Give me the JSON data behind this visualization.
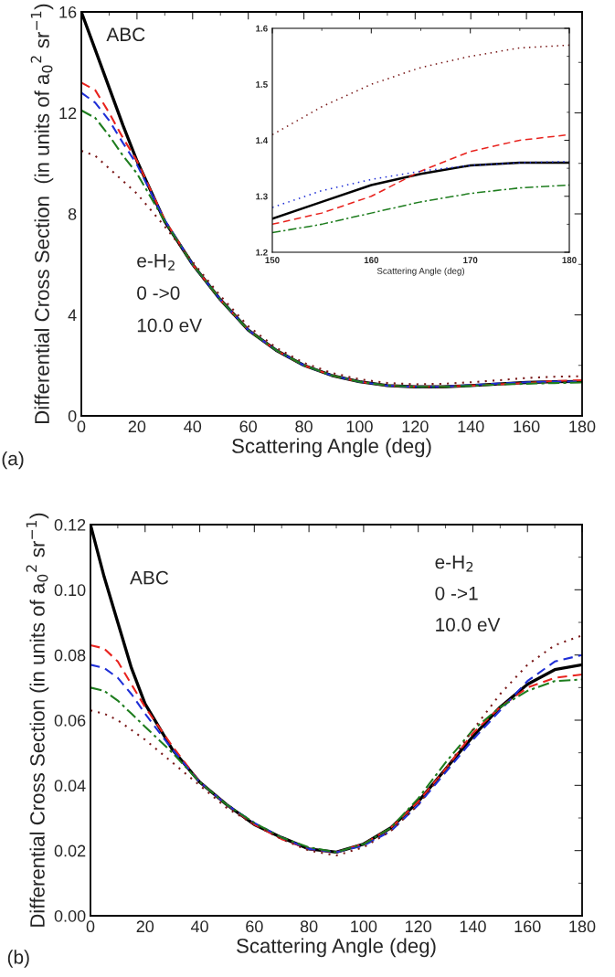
{
  "chart_data": [
    {
      "type": "line",
      "xlabel": "Scattering Angle (deg)",
      "ylabel": "Differential Cross Section  (in units of a$_{0}$$^{2}$ sr$^{−1}$)",
      "annotations": [
        "ABC",
        "e-H$_{2}$",
        "0 ->0",
        "10.0 eV",
        "(a)"
      ],
      "xlim": [
        0,
        180
      ],
      "ylim": [
        0,
        16
      ],
      "xticks": [
        0,
        20,
        40,
        60,
        80,
        100,
        120,
        140,
        160,
        180
      ],
      "yticks": [
        0,
        4,
        8,
        12,
        16
      ],
      "grid": false,
      "x": [
        0,
        5,
        10,
        15,
        20,
        30,
        40,
        50,
        60,
        70,
        80,
        90,
        100,
        110,
        120,
        130,
        140,
        150,
        160,
        170,
        180
      ],
      "series": [
        {
          "color": "#000000",
          "line_style": "solid",
          "values": [
            16,
            14.5,
            13.0,
            11.5,
            10.1,
            7.7,
            6.0,
            4.6,
            3.4,
            2.6,
            2.0,
            1.6,
            1.35,
            1.2,
            1.15,
            1.15,
            1.2,
            1.26,
            1.32,
            1.35,
            1.36
          ]
        },
        {
          "color": "#e8231e",
          "line_style": "dashed",
          "values": [
            13.2,
            12.9,
            12.0,
            11.0,
            10.1,
            7.75,
            6.0,
            4.6,
            3.4,
            2.6,
            2.0,
            1.6,
            1.35,
            1.2,
            1.15,
            1.15,
            1.2,
            1.25,
            1.3,
            1.38,
            1.41
          ]
        },
        {
          "color": "#1f2fd6",
          "line_style": "dashed",
          "values": [
            12.8,
            12.4,
            11.7,
            10.8,
            9.95,
            7.75,
            6.0,
            4.6,
            3.4,
            2.6,
            2.0,
            1.6,
            1.35,
            1.2,
            1.15,
            1.15,
            1.22,
            1.28,
            1.33,
            1.36,
            1.36
          ]
        },
        {
          "color": "#1e7d1e",
          "line_style": "dashdot",
          "values": [
            12.1,
            11.8,
            11.1,
            10.3,
            9.6,
            7.7,
            6.0,
            4.6,
            3.4,
            2.6,
            2.0,
            1.6,
            1.35,
            1.2,
            1.15,
            1.15,
            1.19,
            1.24,
            1.27,
            1.3,
            1.32
          ]
        },
        {
          "color": "#7a1a1a",
          "line_style": "dotted",
          "values": [
            10.5,
            10.3,
            9.8,
            9.3,
            8.8,
            7.5,
            6.1,
            4.75,
            3.55,
            2.7,
            2.1,
            1.7,
            1.45,
            1.3,
            1.25,
            1.27,
            1.33,
            1.41,
            1.5,
            1.55,
            1.57
          ]
        }
      ]
    },
    {
      "type": "line",
      "xlabel": "Scattering Angle (deg)",
      "xlim": [
        150,
        180
      ],
      "ylim": [
        1.2,
        1.6
      ],
      "xticks": [
        150,
        160,
        170,
        180
      ],
      "yticks": [
        1.2,
        1.3,
        1.4,
        1.5,
        1.6
      ],
      "grid": false,
      "x": [
        150,
        155,
        160,
        165,
        170,
        175,
        180
      ],
      "series": [
        {
          "color": "#000000",
          "line_style": "solid",
          "values": [
            1.26,
            1.29,
            1.32,
            1.34,
            1.355,
            1.36,
            1.36
          ]
        },
        {
          "color": "#e8231e",
          "line_style": "dashed",
          "values": [
            1.25,
            1.27,
            1.3,
            1.345,
            1.38,
            1.4,
            1.41
          ]
        },
        {
          "color": "#1f2fd6",
          "line_style": "dotted",
          "values": [
            1.28,
            1.31,
            1.33,
            1.345,
            1.355,
            1.36,
            1.362
          ]
        },
        {
          "color": "#1e7d1e",
          "line_style": "dashdot",
          "values": [
            1.235,
            1.25,
            1.27,
            1.29,
            1.305,
            1.315,
            1.32
          ]
        },
        {
          "color": "#7a1a1a",
          "line_style": "dotted",
          "values": [
            1.41,
            1.46,
            1.5,
            1.53,
            1.55,
            1.565,
            1.57
          ]
        }
      ]
    },
    {
      "type": "line",
      "xlabel": "Scattering Angle (deg)",
      "ylabel": "Differential Cross Section (in units of a$_{0}$$^{2}$ sr$^{−1}$)",
      "annotations": [
        "ABC",
        "e-H$_{2}$",
        "0 ->1",
        "10.0 eV",
        "(b)"
      ],
      "xlim": [
        0,
        180
      ],
      "ylim": [
        0,
        0.12
      ],
      "xticks": [
        0,
        20,
        40,
        60,
        80,
        100,
        120,
        140,
        160,
        180
      ],
      "yticks": [
        {
          "value": 0,
          "label": "0.00"
        },
        {
          "value": 0.02,
          "label": "0.02"
        },
        {
          "value": 0.04,
          "label": "0.04"
        },
        {
          "value": 0.06,
          "label": "0.06"
        },
        {
          "value": 0.08,
          "label": "0.08"
        },
        {
          "value": 0.1,
          "label": "0.10"
        },
        {
          "value": 0.12,
          "label": "0.12"
        }
      ],
      "grid": false,
      "x": [
        0,
        5,
        10,
        15,
        20,
        30,
        40,
        50,
        60,
        70,
        80,
        90,
        100,
        110,
        120,
        130,
        140,
        150,
        160,
        170,
        180
      ],
      "series": [
        {
          "color": "#000000",
          "line_style": "solid",
          "values": [
            0.12,
            0.104,
            0.09,
            0.076,
            0.065,
            0.051,
            0.041,
            0.034,
            0.028,
            0.024,
            0.0205,
            0.0195,
            0.022,
            0.027,
            0.035,
            0.045,
            0.055,
            0.064,
            0.071,
            0.0755,
            0.077
          ]
        },
        {
          "color": "#e8231e",
          "line_style": "dashed",
          "values": [
            0.083,
            0.082,
            0.078,
            0.071,
            0.064,
            0.052,
            0.041,
            0.034,
            0.028,
            0.0235,
            0.0205,
            0.0195,
            0.022,
            0.027,
            0.035,
            0.045,
            0.056,
            0.064,
            0.07,
            0.073,
            0.074
          ]
        },
        {
          "color": "#1f2fd6",
          "line_style": "dashed",
          "values": [
            0.077,
            0.076,
            0.073,
            0.068,
            0.062,
            0.051,
            0.041,
            0.034,
            0.0285,
            0.024,
            0.0205,
            0.0195,
            0.0215,
            0.026,
            0.034,
            0.044,
            0.054,
            0.063,
            0.072,
            0.078,
            0.08
          ]
        },
        {
          "color": "#1e7d1e",
          "line_style": "dashdot",
          "values": [
            0.07,
            0.069,
            0.066,
            0.062,
            0.058,
            0.05,
            0.041,
            0.034,
            0.0285,
            0.024,
            0.021,
            0.0195,
            0.022,
            0.027,
            0.036,
            0.047,
            0.057,
            0.064,
            0.069,
            0.072,
            0.0725
          ]
        },
        {
          "color": "#7a1a1a",
          "line_style": "dotted",
          "values": [
            0.063,
            0.062,
            0.06,
            0.057,
            0.054,
            0.047,
            0.04,
            0.033,
            0.028,
            0.0235,
            0.02,
            0.0185,
            0.021,
            0.026,
            0.034,
            0.045,
            0.057,
            0.068,
            0.077,
            0.083,
            0.086
          ]
        }
      ]
    }
  ]
}
